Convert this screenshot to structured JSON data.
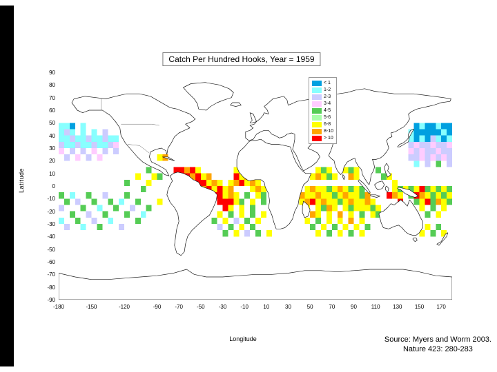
{
  "slide": {
    "accent_bar_color": "#000000",
    "source_line1": "Source: Myers and Worm 2003.",
    "source_line2": "Nature 423: 280-283"
  },
  "chart_data": {
    "type": "heatmap",
    "title": "Catch Per Hundred Hooks, Year = 1959",
    "xlabel": "Longitude",
    "ylabel": "Latitude",
    "xlim": [
      -180,
      180
    ],
    "ylim": [
      -90,
      90
    ],
    "projection": "equirectangular world map",
    "grid": false,
    "cell_size_deg": 5,
    "x_ticks": [
      "-180",
      "-150",
      "-120",
      "-90",
      "-70",
      "-50",
      "-30",
      "-10",
      "10",
      "30",
      "50",
      "70",
      "90",
      "110",
      "130",
      "150",
      "170"
    ],
    "y_ticks": [
      "90",
      "80",
      "70",
      "60",
      "50",
      "40",
      "30",
      "20",
      "10",
      "0",
      "-10",
      "-20",
      "-30",
      "-40",
      "-50",
      "-60",
      "-70",
      "-80",
      "-90"
    ],
    "legend": {
      "position": "center-right overlay",
      "classes": [
        {
          "label": "< 1",
          "color": "#00A0E0"
        },
        {
          "label": "1-2",
          "color": "#88FFFF"
        },
        {
          "label": "2-3",
          "color": "#CCCCFF"
        },
        {
          "label": "3-4",
          "color": "#FFCCFF"
        },
        {
          "label": "4-5",
          "color": "#55CC55"
        },
        {
          "label": "5-6",
          "color": "#AAFFAA"
        },
        {
          "label": "6-8",
          "color": "#FFFF00"
        },
        {
          "label": "8-10",
          "color": "#FFA500"
        },
        {
          "label": "> 10",
          "color": "#FF0000"
        }
      ]
    },
    "cells_format": "[west_longitude, north_latitude, legend_class_index]",
    "cells": [
      [
        145,
        50,
        0
      ],
      [
        150,
        50,
        1
      ],
      [
        155,
        50,
        0
      ],
      [
        160,
        50,
        0
      ],
      [
        165,
        50,
        1
      ],
      [
        170,
        50,
        0
      ],
      [
        175,
        50,
        0
      ],
      [
        140,
        45,
        1
      ],
      [
        145,
        45,
        0
      ],
      [
        150,
        45,
        0
      ],
      [
        155,
        45,
        0
      ],
      [
        160,
        45,
        0
      ],
      [
        165,
        45,
        0
      ],
      [
        170,
        45,
        1
      ],
      [
        175,
        45,
        0
      ],
      [
        140,
        40,
        1
      ],
      [
        145,
        40,
        0
      ],
      [
        150,
        40,
        1
      ],
      [
        155,
        40,
        0
      ],
      [
        160,
        40,
        2
      ],
      [
        165,
        40,
        1
      ],
      [
        170,
        40,
        0
      ],
      [
        175,
        40,
        1
      ],
      [
        140,
        35,
        2
      ],
      [
        145,
        35,
        3
      ],
      [
        150,
        35,
        2
      ],
      [
        155,
        35,
        2
      ],
      [
        160,
        35,
        3
      ],
      [
        165,
        35,
        2
      ],
      [
        170,
        35,
        2
      ],
      [
        175,
        35,
        3
      ],
      [
        140,
        30,
        3
      ],
      [
        145,
        30,
        2
      ],
      [
        150,
        30,
        3
      ],
      [
        155,
        30,
        2
      ],
      [
        160,
        30,
        2
      ],
      [
        165,
        30,
        3
      ],
      [
        170,
        30,
        2
      ],
      [
        175,
        30,
        2
      ],
      [
        140,
        25,
        2
      ],
      [
        145,
        25,
        2
      ],
      [
        150,
        25,
        3
      ],
      [
        155,
        25,
        2
      ],
      [
        160,
        25,
        3
      ],
      [
        165,
        25,
        2
      ],
      [
        170,
        25,
        3
      ],
      [
        175,
        25,
        2
      ],
      [
        145,
        20,
        1
      ],
      [
        155,
        20,
        2
      ],
      [
        165,
        20,
        4
      ],
      [
        175,
        20,
        2
      ],
      [
        -180,
        50,
        1
      ],
      [
        -175,
        50,
        1
      ],
      [
        -170,
        50,
        0
      ],
      [
        -160,
        50,
        1
      ],
      [
        -180,
        45,
        1
      ],
      [
        -175,
        45,
        2
      ],
      [
        -170,
        45,
        1
      ],
      [
        -160,
        45,
        1
      ],
      [
        -150,
        45,
        1
      ],
      [
        -140,
        45,
        2
      ],
      [
        -180,
        40,
        1
      ],
      [
        -175,
        40,
        1
      ],
      [
        -170,
        40,
        2
      ],
      [
        -165,
        40,
        1
      ],
      [
        -160,
        40,
        1
      ],
      [
        -155,
        40,
        2
      ],
      [
        -150,
        40,
        1
      ],
      [
        -145,
        40,
        1
      ],
      [
        -140,
        40,
        2
      ],
      [
        -135,
        40,
        1
      ],
      [
        -130,
        40,
        1
      ],
      [
        -180,
        35,
        2
      ],
      [
        -175,
        35,
        1
      ],
      [
        -170,
        35,
        1
      ],
      [
        -165,
        35,
        2
      ],
      [
        -160,
        35,
        1
      ],
      [
        -155,
        35,
        1
      ],
      [
        -150,
        35,
        2
      ],
      [
        -145,
        35,
        1
      ],
      [
        -140,
        35,
        1
      ],
      [
        -135,
        35,
        2
      ],
      [
        -130,
        35,
        3
      ],
      [
        -180,
        30,
        3
      ],
      [
        -170,
        30,
        2
      ],
      [
        -160,
        30,
        2
      ],
      [
        -150,
        30,
        3
      ],
      [
        -140,
        30,
        2
      ],
      [
        -130,
        30,
        2
      ],
      [
        -175,
        25,
        2
      ],
      [
        -165,
        25,
        3
      ],
      [
        -155,
        25,
        2
      ],
      [
        -145,
        25,
        3
      ],
      [
        -100,
        15,
        4
      ],
      [
        -110,
        10,
        6
      ],
      [
        -95,
        10,
        6
      ],
      [
        -90,
        10,
        4
      ],
      [
        -120,
        5,
        4
      ],
      [
        -100,
        5,
        6
      ],
      [
        -105,
        0,
        4
      ],
      [
        -90,
        25,
        6
      ],
      [
        -85,
        25,
        7
      ],
      [
        -75,
        15,
        8
      ],
      [
        -70,
        15,
        8
      ],
      [
        -65,
        15,
        7
      ],
      [
        -60,
        15,
        8
      ],
      [
        -55,
        15,
        6
      ],
      [
        -70,
        10,
        8
      ],
      [
        -65,
        10,
        8
      ],
      [
        -60,
        10,
        7
      ],
      [
        -55,
        10,
        8
      ],
      [
        -50,
        10,
        6
      ],
      [
        -45,
        10,
        7
      ],
      [
        -55,
        5,
        8
      ],
      [
        -50,
        5,
        8
      ],
      [
        -45,
        5,
        6
      ],
      [
        -40,
        5,
        7
      ],
      [
        -35,
        5,
        6
      ],
      [
        -50,
        0,
        7
      ],
      [
        -45,
        0,
        8
      ],
      [
        -40,
        0,
        6
      ],
      [
        -35,
        0,
        8
      ],
      [
        -30,
        0,
        6
      ],
      [
        -25,
        0,
        7
      ],
      [
        -20,
        15,
        6
      ],
      [
        -15,
        15,
        7
      ],
      [
        -20,
        10,
        8
      ],
      [
        -15,
        10,
        6
      ],
      [
        -10,
        10,
        7
      ],
      [
        -5,
        10,
        6
      ],
      [
        -25,
        5,
        6
      ],
      [
        -20,
        5,
        7
      ],
      [
        -15,
        5,
        8
      ],
      [
        -10,
        5,
        6
      ],
      [
        -5,
        5,
        7
      ],
      [
        0,
        5,
        6
      ],
      [
        -5,
        0,
        6
      ],
      [
        0,
        0,
        7
      ],
      [
        5,
        0,
        6
      ],
      [
        -40,
        -5,
        8
      ],
      [
        -35,
        -5,
        8
      ],
      [
        -30,
        -5,
        6
      ],
      [
        -25,
        -5,
        7
      ],
      [
        -20,
        -5,
        6
      ],
      [
        -10,
        -5,
        4
      ],
      [
        0,
        -5,
        6
      ],
      [
        5,
        -5,
        4
      ],
      [
        -35,
        -10,
        8
      ],
      [
        -30,
        -10,
        8
      ],
      [
        -25,
        -10,
        8
      ],
      [
        -20,
        -10,
        6
      ],
      [
        -15,
        -10,
        4
      ],
      [
        -5,
        -10,
        6
      ],
      [
        5,
        -10,
        4
      ],
      [
        -30,
        -15,
        8
      ],
      [
        -25,
        -15,
        6
      ],
      [
        -15,
        -15,
        6
      ],
      [
        -5,
        -15,
        4
      ],
      [
        -35,
        -20,
        6
      ],
      [
        -25,
        -20,
        4
      ],
      [
        -15,
        -20,
        6
      ],
      [
        -5,
        -20,
        4
      ],
      [
        5,
        -20,
        6
      ],
      [
        -40,
        -25,
        4
      ],
      [
        -30,
        -25,
        6
      ],
      [
        -20,
        -25,
        2
      ],
      [
        -10,
        -25,
        4
      ],
      [
        0,
        -25,
        6
      ],
      [
        -35,
        -30,
        2
      ],
      [
        -25,
        -30,
        4
      ],
      [
        -15,
        -30,
        6
      ],
      [
        -5,
        -30,
        4
      ],
      [
        -30,
        -35,
        4
      ],
      [
        -20,
        -35,
        6
      ],
      [
        -10,
        -35,
        2
      ],
      [
        0,
        -35,
        4
      ],
      [
        10,
        -35,
        6
      ],
      [
        -180,
        -5,
        4
      ],
      [
        -170,
        -5,
        1
      ],
      [
        -155,
        -5,
        4
      ],
      [
        -140,
        -5,
        2
      ],
      [
        -120,
        -5,
        4
      ],
      [
        -175,
        -10,
        4
      ],
      [
        -165,
        -10,
        2
      ],
      [
        -150,
        -10,
        4
      ],
      [
        -135,
        -10,
        4
      ],
      [
        -125,
        -10,
        1
      ],
      [
        -110,
        -10,
        4
      ],
      [
        -90,
        -10,
        6
      ],
      [
        -180,
        -15,
        2
      ],
      [
        -160,
        -15,
        4
      ],
      [
        -145,
        -15,
        1
      ],
      [
        -130,
        -15,
        4
      ],
      [
        -115,
        -15,
        2
      ],
      [
        -100,
        -15,
        4
      ],
      [
        -170,
        -20,
        4
      ],
      [
        -155,
        -20,
        2
      ],
      [
        -140,
        -20,
        4
      ],
      [
        -120,
        -20,
        4
      ],
      [
        -105,
        -20,
        1
      ],
      [
        -180,
        -25,
        1
      ],
      [
        -165,
        -25,
        4
      ],
      [
        -150,
        -25,
        2
      ],
      [
        -135,
        -25,
        1
      ],
      [
        -110,
        -25,
        4
      ],
      [
        -175,
        -30,
        2
      ],
      [
        -160,
        -30,
        1
      ],
      [
        -145,
        -30,
        4
      ],
      [
        -125,
        -30,
        2
      ],
      [
        55,
        15,
        6
      ],
      [
        60,
        15,
        4
      ],
      [
        65,
        15,
        6
      ],
      [
        50,
        10,
        6
      ],
      [
        55,
        10,
        7
      ],
      [
        60,
        10,
        6
      ],
      [
        65,
        10,
        4
      ],
      [
        70,
        10,
        6
      ],
      [
        80,
        15,
        6
      ],
      [
        85,
        15,
        4
      ],
      [
        90,
        15,
        6
      ],
      [
        85,
        10,
        7
      ],
      [
        90,
        10,
        6
      ],
      [
        45,
        0,
        6
      ],
      [
        50,
        0,
        7
      ],
      [
        55,
        0,
        6
      ],
      [
        60,
        0,
        6
      ],
      [
        65,
        0,
        4
      ],
      [
        70,
        0,
        6
      ],
      [
        75,
        0,
        7
      ],
      [
        80,
        0,
        6
      ],
      [
        85,
        0,
        4
      ],
      [
        90,
        0,
        6
      ],
      [
        95,
        0,
        4
      ],
      [
        40,
        -5,
        7
      ],
      [
        45,
        -5,
        6
      ],
      [
        50,
        -5,
        6
      ],
      [
        55,
        -5,
        7
      ],
      [
        60,
        -5,
        6
      ],
      [
        65,
        -5,
        6
      ],
      [
        70,
        -5,
        4
      ],
      [
        75,
        -5,
        6
      ],
      [
        80,
        -5,
        7
      ],
      [
        85,
        -5,
        6
      ],
      [
        90,
        -5,
        6
      ],
      [
        95,
        -5,
        4
      ],
      [
        100,
        -5,
        7
      ],
      [
        40,
        -10,
        6
      ],
      [
        45,
        -10,
        7
      ],
      [
        50,
        -10,
        8
      ],
      [
        55,
        -10,
        6
      ],
      [
        60,
        -10,
        7
      ],
      [
        65,
        -10,
        6
      ],
      [
        70,
        -10,
        6
      ],
      [
        75,
        -10,
        4
      ],
      [
        80,
        -10,
        6
      ],
      [
        85,
        -10,
        7
      ],
      [
        90,
        -10,
        6
      ],
      [
        95,
        -10,
        6
      ],
      [
        100,
        -10,
        7
      ],
      [
        105,
        -10,
        6
      ],
      [
        45,
        -15,
        6
      ],
      [
        55,
        -15,
        6
      ],
      [
        60,
        -15,
        4
      ],
      [
        65,
        -15,
        7
      ],
      [
        70,
        -15,
        6
      ],
      [
        80,
        -15,
        6
      ],
      [
        85,
        -15,
        4
      ],
      [
        90,
        -15,
        6
      ],
      [
        95,
        -15,
        6
      ],
      [
        100,
        -15,
        6
      ],
      [
        105,
        -15,
        4
      ],
      [
        110,
        -15,
        6
      ],
      [
        50,
        -20,
        7
      ],
      [
        55,
        -20,
        6
      ],
      [
        65,
        -20,
        6
      ],
      [
        75,
        -20,
        7
      ],
      [
        85,
        -20,
        6
      ],
      [
        95,
        -20,
        4
      ],
      [
        105,
        -20,
        6
      ],
      [
        110,
        -20,
        4
      ],
      [
        45,
        -25,
        6
      ],
      [
        55,
        -25,
        4
      ],
      [
        65,
        -25,
        6
      ],
      [
        75,
        -25,
        6
      ],
      [
        85,
        -25,
        7
      ],
      [
        95,
        -25,
        6
      ],
      [
        50,
        -30,
        4
      ],
      [
        60,
        -30,
        6
      ],
      [
        70,
        -30,
        4
      ],
      [
        80,
        -30,
        6
      ],
      [
        90,
        -30,
        6
      ],
      [
        100,
        -30,
        4
      ],
      [
        55,
        -35,
        6
      ],
      [
        65,
        -35,
        4
      ],
      [
        75,
        -35,
        6
      ],
      [
        85,
        -35,
        4
      ],
      [
        95,
        -35,
        6
      ],
      [
        110,
        15,
        4
      ],
      [
        115,
        10,
        4
      ],
      [
        120,
        10,
        6
      ],
      [
        125,
        5,
        6
      ],
      [
        125,
        0,
        6
      ],
      [
        120,
        -5,
        8
      ],
      [
        125,
        -5,
        7
      ],
      [
        130,
        -10,
        8
      ],
      [
        130,
        0,
        4
      ],
      [
        135,
        0,
        6
      ],
      [
        140,
        0,
        4
      ],
      [
        145,
        0,
        6
      ],
      [
        150,
        0,
        8
      ],
      [
        155,
        0,
        4
      ],
      [
        160,
        0,
        6
      ],
      [
        165,
        0,
        4
      ],
      [
        170,
        0,
        6
      ],
      [
        175,
        0,
        4
      ],
      [
        130,
        -5,
        6
      ],
      [
        140,
        -5,
        4
      ],
      [
        145,
        -5,
        8
      ],
      [
        150,
        -5,
        7
      ],
      [
        155,
        -5,
        6
      ],
      [
        160,
        -5,
        4
      ],
      [
        165,
        -5,
        6
      ],
      [
        170,
        -5,
        4
      ],
      [
        175,
        -5,
        6
      ],
      [
        145,
        -10,
        4
      ],
      [
        150,
        -10,
        6
      ],
      [
        155,
        -10,
        8
      ],
      [
        160,
        -10,
        4
      ],
      [
        165,
        -10,
        7
      ],
      [
        170,
        -10,
        6
      ],
      [
        175,
        -10,
        4
      ],
      [
        150,
        -15,
        6
      ],
      [
        160,
        -15,
        4
      ],
      [
        170,
        -15,
        6
      ],
      [
        155,
        -20,
        4
      ],
      [
        165,
        -20,
        6
      ],
      [
        145,
        -30,
        4
      ],
      [
        155,
        -30,
        6
      ],
      [
        165,
        -30,
        4
      ],
      [
        150,
        -35,
        6
      ],
      [
        160,
        -35,
        4
      ],
      [
        170,
        -35,
        6
      ]
    ]
  }
}
